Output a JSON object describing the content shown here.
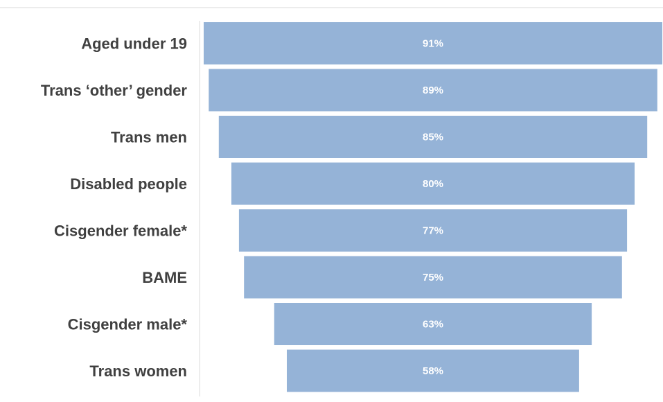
{
  "chart_data": {
    "type": "bar",
    "orientation": "horizontal-funnel",
    "categories": [
      "Aged under 19",
      "Trans ‘other’ gender",
      "Trans men",
      "Disabled people",
      "Cisgender female*",
      "BAME",
      "Cisgender male*",
      "Trans women"
    ],
    "values": [
      91,
      89,
      85,
      80,
      77,
      75,
      63,
      58
    ],
    "data_labels": [
      "91%",
      "89%",
      "85%",
      "80%",
      "77%",
      "75%",
      "63%",
      "58%"
    ],
    "value_unit": "%",
    "xlim": [
      0,
      91
    ],
    "grid": false,
    "legend": "none",
    "colors": {
      "bar": "#95b3d7",
      "label_text": "#404040",
      "data_label_text": "#ffffff",
      "axis": "#d9d9d9"
    }
  }
}
